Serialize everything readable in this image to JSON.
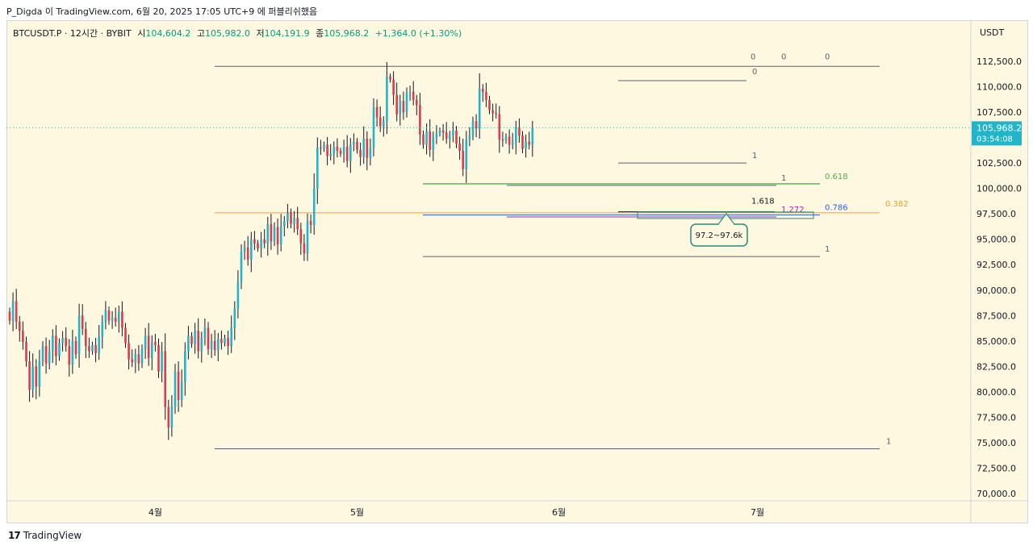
{
  "header": {
    "caption": "P_Digda 이 TradingView.com, 6월 20, 2025 17:05 UTC+9 에 퍼블리쉬했음"
  },
  "legend": {
    "symbol": "BTCUSDT.P · 12시간 · BYBIT",
    "open_label": "시",
    "open": "104,604.2",
    "high_label": "고",
    "high": "105,982.0",
    "low_label": "저",
    "low": "104,191.9",
    "close_label": "종",
    "close": "105,968.2",
    "change": "+1,364.0 (+1.30%)"
  },
  "currency": "USDT",
  "footer": {
    "brand": "TradingView",
    "brand_mark": "17"
  },
  "colors": {
    "up": "#22b5c9",
    "down": "#e03a4b",
    "background": "#fff8e1",
    "fib_green": "#4caf50",
    "fib_blue": "#2962ff",
    "fib_orange": "#f0a020",
    "fib_purple": "#9c27b0",
    "price_tag": "#22b5c9"
  },
  "chart_data": {
    "type": "candlestick",
    "symbol": "BTCUSDT.P",
    "timeframe": "12시간",
    "ylim": [
      70000,
      113500
    ],
    "y_ticks": [
      "112,500.0",
      "110,000.0",
      "107,500.0",
      "105,000.0",
      "102,500.0",
      "100,000.0",
      "97,500.0",
      "95,000.0",
      "92,500.0",
      "90,000.0",
      "87,500.0",
      "85,000.0",
      "82,500.0",
      "80,000.0",
      "77,500.0",
      "75,000.0",
      "72,500.0",
      "70,000.0"
    ],
    "y_tick_values": [
      112500,
      110000,
      107500,
      105000,
      102500,
      100000,
      97500,
      95000,
      92500,
      90000,
      87500,
      85000,
      82500,
      80000,
      77500,
      75000,
      72500,
      70000
    ],
    "x_ticks": [
      {
        "label": "4월",
        "index": 44
      },
      {
        "label": "5월",
        "index": 105
      },
      {
        "label": "6월",
        "index": 166
      },
      {
        "label": "7월",
        "index": 226
      }
    ],
    "x_span": [
      0,
      282
    ],
    "last_price": {
      "value": 105968.2,
      "label": "105,968.2",
      "countdown": "03:54:08"
    },
    "closes": [
      87000,
      88900,
      86900,
      86000,
      84900,
      83000,
      80200,
      82500,
      80500,
      83000,
      84500,
      82800,
      84000,
      85500,
      83500,
      84800,
      85300,
      84500,
      82700,
      85000,
      83700,
      87500,
      86200,
      84500,
      84000,
      84600,
      83800,
      85400,
      86900,
      88000,
      87000,
      87300,
      86900,
      87900,
      86300,
      84800,
      83200,
      82900,
      83700,
      82800,
      84200,
      85500,
      83300,
      84900,
      84600,
      82000,
      84000,
      78500,
      76500,
      78600,
      82000,
      79200,
      81000,
      84000,
      85500,
      84700,
      86000,
      84000,
      85300,
      86300,
      84200,
      85000,
      84100,
      85200,
      84800,
      85300,
      84500,
      86300,
      88200,
      90800,
      93800,
      94200,
      93000,
      95000,
      94600,
      94100,
      95000,
      94600,
      96500,
      94800,
      96200,
      94500,
      96300,
      96800,
      97600,
      96500,
      97100,
      96000,
      94600,
      93600,
      96800,
      96400,
      100000,
      104000,
      103900,
      104300,
      103200,
      103400,
      104100,
      103700,
      103400,
      104100,
      102700,
      104300,
      104600,
      103800,
      103100,
      104900,
      103000,
      104000,
      108000,
      107000,
      106100,
      106600,
      111000,
      110700,
      109200,
      107300,
      108600,
      107500,
      109400,
      109500,
      108700,
      108200,
      105300,
      104300,
      105600,
      103800,
      105000,
      105400,
      105700,
      105500,
      104900,
      105200,
      105700,
      104400,
      103700,
      101900,
      104800,
      105200,
      106600,
      105900,
      109800,
      109500,
      108700,
      107700,
      107400,
      107300,
      104800,
      104700,
      105100,
      104300,
      104500,
      106000,
      105200,
      103900,
      104600,
      104300,
      105968
    ],
    "levels": [
      {
        "name": "range-top",
        "price": 112000,
        "label": "0",
        "color": "#5d606b"
      },
      {
        "name": "range-bottom",
        "price": 74400,
        "label": "1",
        "color": "#5d606b"
      },
      {
        "name": "sub-range-top",
        "price": 110600,
        "label": "0",
        "color": "#5d606b"
      },
      {
        "name": "sub-range-bottom",
        "price": 102500,
        "label": "1",
        "color": "#5d606b"
      },
      {
        "name": "green-line",
        "price": 100450,
        "label": "0.618",
        "color": "#4caf50"
      },
      {
        "name": "lower-line",
        "price": 100300,
        "label": "1",
        "color": "#5d606b"
      },
      {
        "name": "orange-line",
        "price": 97600,
        "label": "0.382",
        "color": "#f0a020"
      },
      {
        "name": "blue-line",
        "price": 97400,
        "label": "0.786",
        "color": "#2962ff"
      },
      {
        "name": "purple-line",
        "price": 97200,
        "label": "1.272",
        "color": "#9c27b0"
      },
      {
        "name": "ext-line",
        "price": 97700,
        "label": "1.618",
        "color": "#131722"
      },
      {
        "name": "support-line",
        "price": 93300,
        "label": "1",
        "color": "#5d606b"
      }
    ],
    "top_labels": [
      "0",
      "0",
      "0"
    ],
    "annotation": {
      "text": "97.2~97.6k",
      "range": [
        97200,
        97600
      ]
    }
  }
}
